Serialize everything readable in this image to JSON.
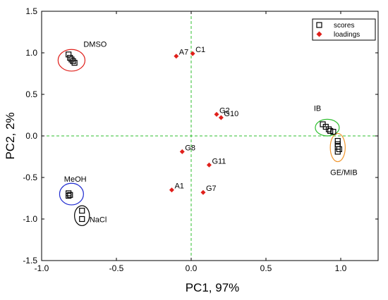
{
  "chart_data": {
    "type": "scatter",
    "xlabel": "PC1, 97%",
    "ylabel": "PC2, 2%",
    "xlim": [
      -1.0,
      1.25
    ],
    "ylim": [
      -1.5,
      1.5
    ],
    "xticks": [
      "-1.0",
      "-0.5",
      "0.0",
      "0.5",
      "1.0"
    ],
    "yticks": [
      "-1.5",
      "-1.0",
      "-0.5",
      "0.0",
      "0.5",
      "1.0",
      "1.5"
    ],
    "xtick_values": [
      -1.0,
      -0.5,
      0.0,
      0.5,
      1.0
    ],
    "ytick_values": [
      -1.5,
      -1.0,
      -0.5,
      0.0,
      0.5,
      1.0,
      1.5
    ],
    "zero_lines": true,
    "legend_position": "top-right",
    "series": [
      {
        "name": "scores",
        "marker": "open-square",
        "color": "#000000",
        "points": [
          {
            "x": -0.82,
            "y": 0.98
          },
          {
            "x": -0.81,
            "y": 0.94
          },
          {
            "x": -0.8,
            "y": 0.92
          },
          {
            "x": -0.79,
            "y": 0.9
          },
          {
            "x": -0.78,
            "y": 0.88
          },
          {
            "x": -0.82,
            "y": -0.69
          },
          {
            "x": -0.81,
            "y": -0.71
          },
          {
            "x": -0.82,
            "y": -0.72
          },
          {
            "x": -0.73,
            "y": -0.9
          },
          {
            "x": -0.73,
            "y": -1.0
          },
          {
            "x": 0.88,
            "y": 0.14
          },
          {
            "x": 0.9,
            "y": 0.11
          },
          {
            "x": 0.92,
            "y": 0.08
          },
          {
            "x": 0.93,
            "y": 0.06
          },
          {
            "x": 0.95,
            "y": 0.05
          },
          {
            "x": 0.98,
            "y": -0.06
          },
          {
            "x": 0.98,
            "y": -0.1
          },
          {
            "x": 0.98,
            "y": -0.13
          },
          {
            "x": 0.99,
            "y": -0.16
          },
          {
            "x": 0.98,
            "y": -0.19
          }
        ]
      },
      {
        "name": "loadings",
        "marker": "filled-diamond",
        "color": "#e0201b",
        "points": [
          {
            "x": -0.1,
            "y": 0.96,
            "label": "A7"
          },
          {
            "x": 0.01,
            "y": 0.99,
            "label": "C1"
          },
          {
            "x": 0.17,
            "y": 0.26,
            "label": "G2"
          },
          {
            "x": 0.2,
            "y": 0.22,
            "label": "G10"
          },
          {
            "x": -0.06,
            "y": -0.19,
            "label": "G8"
          },
          {
            "x": 0.12,
            "y": -0.35,
            "label": "G11"
          },
          {
            "x": -0.13,
            "y": -0.65,
            "label": "A1"
          },
          {
            "x": 0.08,
            "y": -0.68,
            "label": "G7"
          }
        ]
      }
    ],
    "groups": [
      {
        "label": "DMSO",
        "color": "#e0201b",
        "cx": -0.8,
        "cy": 0.91,
        "rx": 0.09,
        "ry": 0.13,
        "label_x": -0.72,
        "label_y": 1.07
      },
      {
        "label": "MeOH",
        "color": "#1f2bd0",
        "cx": -0.8,
        "cy": -0.7,
        "rx": 0.08,
        "ry": 0.13,
        "label_x": -0.85,
        "label_y": -0.55
      },
      {
        "label": "NaCl",
        "color": "#000000",
        "cx": -0.73,
        "cy": -0.96,
        "rx": 0.05,
        "ry": 0.12,
        "label_x": -0.68,
        "label_y": -1.04
      },
      {
        "label": "IB",
        "color": "#2fbf2f",
        "cx": 0.91,
        "cy": 0.1,
        "rx": 0.08,
        "ry": 0.1,
        "label_x": 0.82,
        "label_y": 0.3
      },
      {
        "label": "GE/MIB",
        "color": "#f0962d",
        "cx": 0.98,
        "cy": -0.14,
        "rx": 0.05,
        "ry": 0.17,
        "label_x": 0.93,
        "label_y": -0.47
      }
    ]
  }
}
